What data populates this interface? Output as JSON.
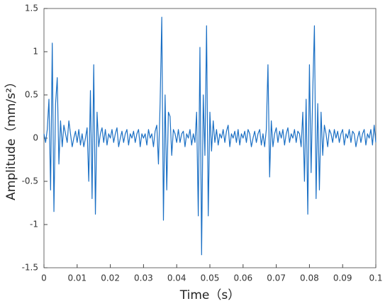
{
  "chart_data": {
    "type": "line",
    "xlabel": "Time（s）",
    "ylabel": "Amplitude（mm/s²）",
    "color": "#1a6fc4",
    "xlim": [
      0,
      0.1
    ],
    "xticks": [
      0,
      0.01,
      0.02,
      0.03,
      0.04,
      0.05,
      0.06,
      0.07,
      0.08,
      0.09,
      0.1
    ],
    "ylim": [
      -1.5,
      1.5
    ],
    "yticks": [
      -1.5,
      -1,
      -0.5,
      0,
      0.5,
      1,
      1.5
    ],
    "grid": false,
    "x": [
      0,
      0.0005,
      0.001,
      0.0015,
      0.002,
      0.0025,
      0.003,
      0.0035,
      0.004,
      0.0045,
      0.005,
      0.0055,
      0.006,
      0.0065,
      0.007,
      0.0075,
      0.008,
      0.0085,
      0.009,
      0.0095,
      0.01,
      0.0105,
      0.011,
      0.0115,
      0.012,
      0.0125,
      0.013,
      0.0135,
      0.014,
      0.0145,
      0.015,
      0.0155,
      0.016,
      0.0165,
      0.017,
      0.0175,
      0.018,
      0.0185,
      0.019,
      0.0195,
      0.02,
      0.0205,
      0.021,
      0.0215,
      0.022,
      0.0225,
      0.023,
      0.0235,
      0.024,
      0.0245,
      0.025,
      0.0255,
      0.026,
      0.0265,
      0.027,
      0.0275,
      0.028,
      0.0285,
      0.029,
      0.0295,
      0.03,
      0.0305,
      0.031,
      0.0315,
      0.032,
      0.0325,
      0.033,
      0.0335,
      0.034,
      0.0345,
      0.035,
      0.0355,
      0.036,
      0.0365,
      0.037,
      0.0375,
      0.038,
      0.0385,
      0.039,
      0.0395,
      0.04,
      0.0405,
      0.041,
      0.0415,
      0.042,
      0.0425,
      0.043,
      0.0435,
      0.044,
      0.0445,
      0.045,
      0.0455,
      0.046,
      0.0465,
      0.047,
      0.0475,
      0.048,
      0.0485,
      0.049,
      0.0495,
      0.05,
      0.0505,
      0.051,
      0.0515,
      0.052,
      0.0525,
      0.053,
      0.0535,
      0.054,
      0.0545,
      0.055,
      0.0555,
      0.056,
      0.0565,
      0.057,
      0.0575,
      0.058,
      0.0585,
      0.059,
      0.0595,
      0.06,
      0.0605,
      0.061,
      0.0615,
      0.062,
      0.0625,
      0.063,
      0.0635,
      0.064,
      0.0645,
      0.065,
      0.0655,
      0.066,
      0.0665,
      0.067,
      0.0675,
      0.068,
      0.0685,
      0.069,
      0.0695,
      0.07,
      0.0705,
      0.071,
      0.0715,
      0.072,
      0.0725,
      0.073,
      0.0735,
      0.074,
      0.0745,
      0.075,
      0.0755,
      0.076,
      0.0765,
      0.077,
      0.0775,
      0.078,
      0.0785,
      0.079,
      0.0795,
      0.08,
      0.0805,
      0.081,
      0.0815,
      0.082,
      0.0825,
      0.083,
      0.0835,
      0.084,
      0.0845,
      0.085,
      0.0855,
      0.086,
      0.0865,
      0.087,
      0.0875,
      0.088,
      0.0885,
      0.089,
      0.0895,
      0.09,
      0.0905,
      0.091,
      0.0915,
      0.092,
      0.0925,
      0.093,
      0.0935,
      0.094,
      0.0945,
      0.095,
      0.0955,
      0.096,
      0.0965,
      0.097,
      0.0975,
      0.098,
      0.0985,
      0.099,
      0.0995,
      0.1
    ],
    "values": [
      0.05,
      -0.05,
      0.1,
      0.45,
      -0.6,
      1.1,
      -0.85,
      0.4,
      0.7,
      -0.3,
      0.2,
      -0.1,
      0.15,
      0.05,
      -0.05,
      0.2,
      0.05,
      -0.1,
      0,
      0.08,
      -0.05,
      0.1,
      -0.08,
      0.05,
      -0.1,
      0,
      0.12,
      -0.5,
      0.55,
      -0.7,
      0.85,
      -0.88,
      0.3,
      -0.1,
      0.05,
      0.12,
      -0.05,
      0.1,
      -0.08,
      0.05,
      0,
      0.1,
      -0.05,
      0.05,
      0.12,
      -0.1,
      0,
      0.08,
      -0.05,
      0.05,
      0.1,
      -0.08,
      0.05,
      0,
      0.08,
      -0.05,
      0.05,
      0.1,
      -0.1,
      0.05,
      0,
      0.05,
      -0.08,
      0.1,
      0,
      0.05,
      -0.1,
      0.08,
      0.15,
      -0.3,
      0.4,
      1.4,
      -0.95,
      0.5,
      -0.6,
      0.3,
      0.25,
      -0.2,
      0.1,
      0.05,
      -0.05,
      0.1,
      -0.05,
      0.05,
      0.08,
      -0.1,
      0.05,
      0,
      0.1,
      -0.08,
      0.05,
      -0.05,
      0.3,
      -0.9,
      1.05,
      -1.35,
      0.5,
      -0.2,
      1.3,
      -0.9,
      0.3,
      -0.15,
      0.2,
      -0.05,
      0.1,
      -0.08,
      0.05,
      0,
      0.1,
      -0.05,
      0.08,
      0.15,
      -0.1,
      0.05,
      0,
      0.08,
      -0.05,
      0.1,
      -0.08,
      0.05,
      0,
      0.08,
      -0.05,
      0.1,
      0.05,
      -0.1,
      0,
      0.08,
      -0.05,
      0.05,
      0.1,
      -0.08,
      0.05,
      -0.1,
      0.1,
      0.85,
      -0.45,
      0.2,
      -0.1,
      0.05,
      0.12,
      -0.05,
      0.08,
      0,
      0.1,
      -0.08,
      0.05,
      0.12,
      -0.05,
      0.05,
      0,
      0.1,
      -0.05,
      0.08,
      0.05,
      -0.1,
      0.3,
      -0.5,
      0.45,
      -0.88,
      0.85,
      -0.4,
      0.55,
      1.3,
      -0.7,
      0.4,
      -0.6,
      0.3,
      -0.2,
      0.15,
      0.05,
      -0.1,
      0.1,
      0.05,
      -0.05,
      0.1,
      0,
      0.08,
      -0.05,
      0.05,
      0.1,
      -0.08,
      0.05,
      0,
      0.1,
      -0.05,
      0.08,
      0.05,
      -0.1,
      0,
      0.08,
      -0.05,
      0.05,
      0.1,
      -0.08,
      0.05,
      0,
      0.1,
      -0.08,
      0.15,
      -0.05
    ]
  }
}
